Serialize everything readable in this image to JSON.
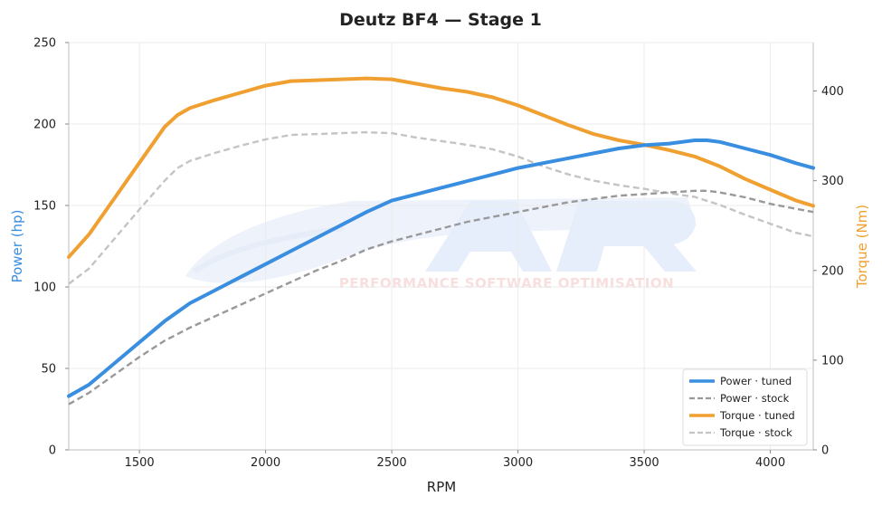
{
  "chart_data": {
    "type": "line",
    "title": "Deutz BF4 — Stage 1",
    "xlabel": "RPM",
    "ylabel": "Power (hp)",
    "y2label": "Torque (Nm)",
    "xlim": [
      1220,
      4170
    ],
    "ylim": [
      0,
      250
    ],
    "y2lim": [
      0,
      454
    ],
    "xticks": [
      1500,
      2000,
      2500,
      3000,
      3500,
      4000
    ],
    "yticks": [
      0,
      50,
      100,
      150,
      200,
      250
    ],
    "y2ticks": [
      0,
      100,
      200,
      300,
      400
    ],
    "grid": true,
    "legend_position": "lower-right",
    "watermark": "PERFORMANCE SOFTWARE OPTIMISATION",
    "colors": {
      "power": "#3a8ee0",
      "torque": "#f0a030",
      "power_stock": "#999999",
      "torque_stock": "#c4c4c4",
      "grid": "#ebebeb",
      "axis": "#d4d4d4"
    },
    "series": [
      {
        "name": "Power · tuned",
        "axis": "left",
        "style": "solid",
        "color": "#3a8ee0",
        "x": [
          1220,
          1300,
          1400,
          1500,
          1600,
          1700,
          1800,
          1900,
          2000,
          2100,
          2200,
          2300,
          2400,
          2500,
          2600,
          2700,
          2800,
          2900,
          3000,
          3100,
          3200,
          3300,
          3400,
          3500,
          3600,
          3700,
          3750,
          3800,
          3900,
          4000,
          4100,
          4170
        ],
        "y": [
          33,
          40,
          53,
          66,
          79,
          90,
          98,
          106,
          114,
          122,
          130,
          138,
          146,
          153,
          157,
          161,
          165,
          169,
          173,
          176,
          179,
          182,
          185,
          187,
          188,
          190,
          190,
          189,
          185,
          181,
          176,
          173
        ]
      },
      {
        "name": "Power · stock",
        "axis": "left",
        "style": "dashed",
        "color": "#999999",
        "x": [
          1220,
          1300,
          1400,
          1500,
          1600,
          1700,
          1800,
          1900,
          2000,
          2100,
          2200,
          2300,
          2400,
          2500,
          2600,
          2700,
          2800,
          2900,
          3000,
          3100,
          3200,
          3300,
          3400,
          3500,
          3600,
          3700,
          3750,
          3800,
          3900,
          4000,
          4100,
          4170
        ],
        "y": [
          28,
          35,
          46,
          57,
          67,
          75,
          82,
          89,
          96,
          103,
          110,
          116,
          123,
          128,
          132,
          136,
          140,
          143,
          146,
          149,
          152,
          154,
          156,
          157,
          158,
          159,
          159,
          158,
          155,
          151,
          148,
          146
        ]
      },
      {
        "name": "Torque · tuned",
        "axis": "right",
        "style": "solid",
        "color": "#f0a030",
        "x": [
          1220,
          1300,
          1400,
          1500,
          1600,
          1650,
          1700,
          1800,
          1900,
          2000,
          2100,
          2200,
          2300,
          2400,
          2500,
          2600,
          2700,
          2800,
          2900,
          3000,
          3100,
          3200,
          3300,
          3400,
          3500,
          3600,
          3700,
          3800,
          3900,
          4000,
          4100,
          4170
        ],
        "y": [
          215,
          240,
          280,
          320,
          360,
          373,
          381,
          390,
          398,
          406,
          411,
          412,
          413,
          414,
          413,
          408,
          403,
          399,
          393,
          384,
          373,
          362,
          352,
          345,
          340,
          334,
          327,
          316,
          302,
          290,
          278,
          272
        ]
      },
      {
        "name": "Torque · stock",
        "axis": "right",
        "style": "dashed",
        "color": "#c4c4c4",
        "x": [
          1220,
          1300,
          1400,
          1500,
          1600,
          1650,
          1700,
          1800,
          1900,
          2000,
          2100,
          2200,
          2300,
          2400,
          2500,
          2600,
          2700,
          2800,
          2900,
          3000,
          3100,
          3200,
          3300,
          3400,
          3500,
          3600,
          3700,
          3800,
          3900,
          4000,
          4100,
          4170
        ],
        "y": [
          185,
          202,
          235,
          268,
          300,
          314,
          322,
          331,
          339,
          346,
          351,
          352,
          353,
          354,
          353,
          348,
          344,
          340,
          335,
          327,
          316,
          307,
          300,
          295,
          291,
          286,
          282,
          273,
          262,
          252,
          242,
          238
        ]
      }
    ]
  }
}
